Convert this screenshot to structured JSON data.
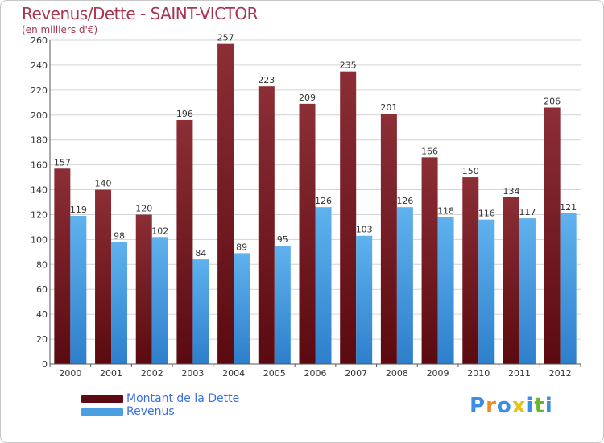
{
  "header": {
    "title": "Revenus/Dette - SAINT-VICTOR",
    "subtitle": "(en milliers d'€)"
  },
  "chart_data": {
    "type": "bar",
    "title": "Revenus/Dette - SAINT-VICTOR",
    "subtitle": "(en milliers d'€)",
    "categories": [
      "2000",
      "2001",
      "2002",
      "2003",
      "2004",
      "2005",
      "2006",
      "2007",
      "2008",
      "2009",
      "2010",
      "2011",
      "2012"
    ],
    "series": [
      {
        "name": "Montant de la Dette",
        "color": "#7a1a22",
        "values": [
          157,
          140,
          120,
          196,
          257,
          223,
          209,
          235,
          201,
          166,
          150,
          134,
          206
        ]
      },
      {
        "name": "Revenus",
        "color": "#4a9fe0",
        "values": [
          119,
          98,
          102,
          84,
          89,
          95,
          126,
          103,
          126,
          118,
          116,
          117,
          121
        ]
      }
    ],
    "ylim": [
      0,
      260
    ],
    "yticks": [
      0,
      20,
      40,
      60,
      80,
      100,
      120,
      140,
      160,
      180,
      200,
      220,
      240,
      260
    ],
    "grid": true,
    "legend_position": "bottom-left"
  },
  "legend": {
    "items": [
      {
        "label": "Montant de la Dette",
        "color": "#5c0a12"
      },
      {
        "label": "Revenus",
        "color": "#4a9fe0"
      }
    ]
  },
  "logo": {
    "letters": [
      "P",
      "r",
      "o",
      "x",
      "i",
      "t",
      "i"
    ],
    "colors": [
      "#3a8ee6",
      "#f08a1a",
      "#3a8ee6",
      "#e8c21a",
      "#3a8ee6",
      "#6ab82a",
      "#3a8ee6"
    ]
  }
}
